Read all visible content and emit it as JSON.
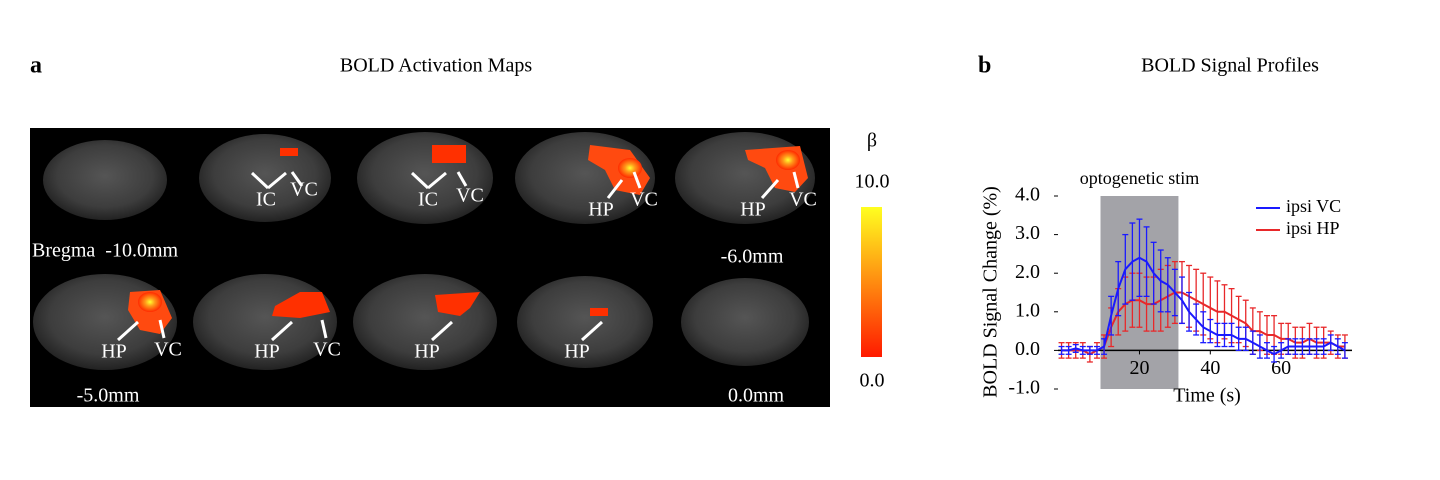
{
  "panel_a": {
    "label": "a",
    "title": "BOLD Activation Maps",
    "annotations": [
      "IC",
      "VC",
      "IC",
      "VC",
      "HP",
      "VC",
      "HP",
      "VC",
      "HP",
      "VC",
      "HP",
      "VC",
      "HP",
      "HP"
    ],
    "levels": [
      "Bregma  -10.0mm",
      "-6.0mm",
      "-5.0mm",
      "0.0mm"
    ],
    "colorbar": {
      "label": "β",
      "range": [
        0,
        10
      ],
      "ticks": [
        {
          "value": 10,
          "label": "10.0"
        },
        {
          "value": 0,
          "label": "0.0"
        }
      ]
    }
  },
  "chart_data": {
    "type": "line",
    "panel_label": "b",
    "title": "BOLD Signal Profiles",
    "x_label": "Time (s)",
    "y_label": "BOLD Signal Change (%)",
    "stim": {
      "label": "optogenetic stim",
      "range": [
        9,
        31
      ]
    },
    "x": [
      -2,
      0,
      2,
      4,
      6,
      8,
      10,
      12,
      14,
      16,
      18,
      20,
      22,
      24,
      26,
      28,
      30,
      32,
      34,
      36,
      38,
      40,
      42,
      44,
      46,
      48,
      50,
      52,
      54,
      56,
      58,
      60,
      62,
      64,
      66,
      68,
      70,
      72,
      74,
      76,
      78
    ],
    "series": [
      {
        "name": "ipsi VC",
        "color": "#1a1aff",
        "values": [
          0,
          0,
          0.05,
          0,
          0,
          0,
          0.1,
          0.9,
          1.6,
          2.1,
          2.3,
          2.4,
          2.3,
          2.0,
          1.8,
          1.7,
          1.5,
          1.3,
          1.0,
          0.8,
          0.6,
          0.5,
          0.4,
          0.4,
          0.4,
          0.3,
          0.3,
          0.2,
          0.1,
          0,
          -0.1,
          0,
          0.1,
          0.1,
          0.1,
          0.1,
          0.1,
          0.1,
          0.2,
          0.1,
          0
        ],
        "errors": [
          0.1,
          0.1,
          0.1,
          0.1,
          0.1,
          0.1,
          0.2,
          0.5,
          0.7,
          0.9,
          1.0,
          1.0,
          0.9,
          0.8,
          0.8,
          0.7,
          0.6,
          0.6,
          0.5,
          0.4,
          0.4,
          0.3,
          0.3,
          0.3,
          0.3,
          0.3,
          0.3,
          0.3,
          0.3,
          0.2,
          0.2,
          0.2,
          0.2,
          0.2,
          0.2,
          0.2,
          0.2,
          0.2,
          0.2,
          0.2,
          0.2
        ]
      },
      {
        "name": "ipsi HP",
        "color": "#e8282a",
        "values": [
          0,
          0,
          0,
          0,
          -0.1,
          0,
          0.1,
          0.6,
          1.0,
          1.2,
          1.3,
          1.3,
          1.2,
          1.2,
          1.3,
          1.4,
          1.5,
          1.5,
          1.4,
          1.3,
          1.2,
          1.1,
          1.0,
          1.0,
          0.9,
          0.8,
          0.7,
          0.5,
          0.5,
          0.4,
          0.4,
          0.3,
          0.3,
          0.2,
          0.2,
          0.3,
          0.2,
          0.2,
          0.2,
          0.1,
          0.1
        ],
        "errors": [
          0.2,
          0.2,
          0.2,
          0.2,
          0.2,
          0.2,
          0.3,
          0.5,
          0.6,
          0.7,
          0.7,
          0.7,
          0.7,
          0.7,
          0.8,
          0.8,
          0.8,
          0.8,
          0.8,
          0.8,
          0.8,
          0.8,
          0.8,
          0.7,
          0.7,
          0.6,
          0.6,
          0.6,
          0.5,
          0.5,
          0.5,
          0.4,
          0.4,
          0.4,
          0.4,
          0.4,
          0.4,
          0.4,
          0.3,
          0.3,
          0.3
        ]
      }
    ],
    "xlim": [
      -3,
      80
    ],
    "ylim": [
      -1,
      4
    ],
    "xticks": [
      20,
      40,
      60
    ],
    "yticks": [
      {
        "value": 4,
        "label": "4.0"
      },
      {
        "value": 3,
        "label": "3.0"
      },
      {
        "value": 2,
        "label": "2.0"
      },
      {
        "value": 1,
        "label": "1.0"
      },
      {
        "value": 0,
        "label": "0.0"
      },
      {
        "value": -1,
        "label": "-1.0"
      }
    ],
    "legend": "upper right"
  }
}
